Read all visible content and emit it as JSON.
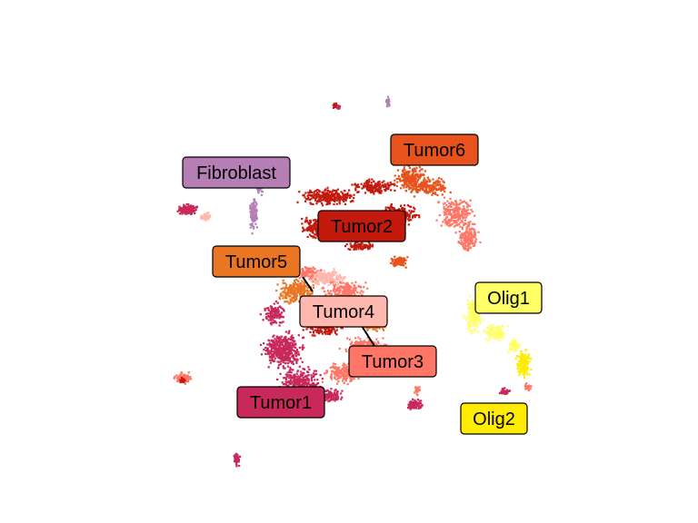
{
  "chart_data": {
    "type": "scatter",
    "title": "",
    "xlabel": "",
    "ylabel": "",
    "grid": false,
    "axes": false,
    "legend": "none",
    "clusters": [
      {
        "name": "Tumor6",
        "color": "#e8521c",
        "text_color": "#000000"
      },
      {
        "name": "Fibroblast",
        "color": "#b57fb5",
        "text_color": "#000000"
      },
      {
        "name": "Tumor2",
        "color": "#c41a0e",
        "text_color": "#000000"
      },
      {
        "name": "Tumor5",
        "color": "#ea7624",
        "text_color": "#000000"
      },
      {
        "name": "Olig1",
        "color": "#ffff66",
        "text_color": "#000000"
      },
      {
        "name": "Tumor4",
        "color": "#ffb8ae",
        "text_color": "#000000"
      },
      {
        "name": "Tumor3",
        "color": "#ff7566",
        "text_color": "#000000"
      },
      {
        "name": "Tumor1",
        "color": "#c8285a",
        "text_color": "#000000"
      },
      {
        "name": "Olig2",
        "color": "#ffec00",
        "text_color": "#000000"
      }
    ]
  }
}
